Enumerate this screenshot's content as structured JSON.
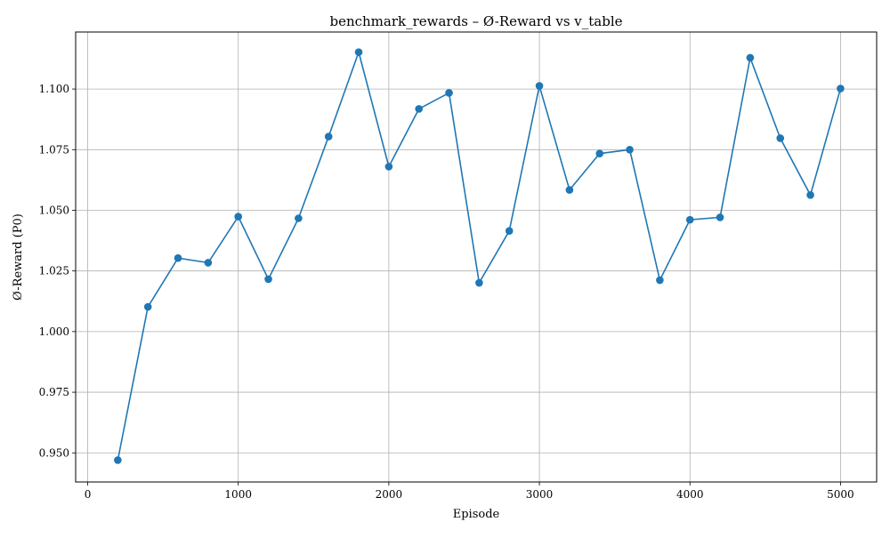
{
  "chart_data": {
    "type": "line",
    "title": "benchmark_rewards – Ø-Reward vs v_table",
    "xlabel": "Episode",
    "ylabel": "Ø-Reward (P0)",
    "xlim": [
      -80,
      5240
    ],
    "ylim": [
      0.938,
      1.1235
    ],
    "xticks": [
      0,
      1000,
      2000,
      3000,
      4000,
      5000
    ],
    "xtick_labels": [
      "0",
      "1000",
      "2000",
      "3000",
      "4000",
      "5000"
    ],
    "yticks": [
      0.95,
      0.975,
      1.0,
      1.025,
      1.05,
      1.075,
      1.1
    ],
    "ytick_labels": [
      "0.950",
      "0.975",
      "1.000",
      "1.025",
      "1.050",
      "1.075",
      "1.100"
    ],
    "grid": true,
    "color": "#1f77b4",
    "marker": "circle",
    "series": [
      {
        "x": [
          200,
          400,
          600,
          800,
          1000,
          1200,
          1400,
          1600,
          1800,
          2000,
          2200,
          2400,
          2600,
          2800,
          3000,
          3200,
          3400,
          3600,
          3800,
          4000,
          4200,
          4400,
          4600,
          4800,
          5000
        ],
        "values": [
          0.947,
          1.0102,
          1.0303,
          1.0284,
          1.0474,
          1.0216,
          1.0467,
          1.0804,
          1.1152,
          1.068,
          1.0918,
          1.0984,
          1.0201,
          1.0415,
          1.1013,
          1.0584,
          1.0734,
          1.075,
          1.0212,
          1.0461,
          1.0471,
          1.1129,
          1.0797,
          1.0563,
          1.1002
        ]
      }
    ]
  }
}
